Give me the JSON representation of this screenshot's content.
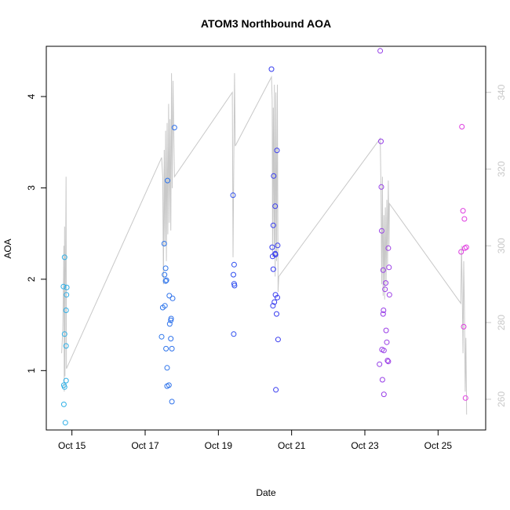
{
  "chart_data": {
    "type": "scatter",
    "title": "ATOM3 Northbound AOA",
    "xlabel": "Date",
    "ylabel": "AOA",
    "x_unit": "days (Oct)",
    "xlim": [
      14.3,
      26.3
    ],
    "ylim": [
      0.35,
      4.55
    ],
    "y2lim": [
      252,
      352
    ],
    "x_ticks": [
      {
        "value": 15,
        "label": "Oct 15"
      },
      {
        "value": 17,
        "label": "Oct 17"
      },
      {
        "value": 19,
        "label": "Oct 19"
      },
      {
        "value": 21,
        "label": "Oct 21"
      },
      {
        "value": 23,
        "label": "Oct 23"
      },
      {
        "value": 25,
        "label": "Oct 25"
      }
    ],
    "y_ticks": [
      1,
      2,
      3,
      4
    ],
    "y2_ticks": [
      260,
      280,
      300,
      320,
      340
    ],
    "grid": false,
    "legend": "none",
    "colors": {
      "line": "#c8c8c8",
      "start": "#2fb2e6",
      "mid": "#2d3bf0",
      "end": "#e23ee0"
    },
    "series": [
      {
        "kind": "points",
        "axis": "left",
        "color_gradient": "cyan-blue-magenta",
        "points": [
          [
            14.77,
            1.92
          ],
          [
            14.8,
            2.24
          ],
          [
            14.8,
            1.4
          ],
          [
            14.78,
            0.84
          ],
          [
            14.8,
            0.82
          ],
          [
            14.78,
            0.63
          ],
          [
            14.82,
            0.43
          ],
          [
            14.86,
            1.91
          ],
          [
            14.85,
            1.83
          ],
          [
            14.84,
            1.66
          ],
          [
            14.84,
            1.27
          ],
          [
            14.84,
            0.89
          ],
          [
            17.45,
            1.37
          ],
          [
            17.48,
            1.69
          ],
          [
            17.52,
            2.39
          ],
          [
            17.53,
            2.05
          ],
          [
            17.54,
            1.71
          ],
          [
            17.56,
            2.12
          ],
          [
            17.56,
            1.98
          ],
          [
            17.57,
            1.24
          ],
          [
            17.58,
            1.99
          ],
          [
            17.6,
            1.03
          ],
          [
            17.6,
            0.83
          ],
          [
            17.61,
            3.08
          ],
          [
            17.65,
            0.84
          ],
          [
            17.66,
            1.82
          ],
          [
            17.67,
            1.51
          ],
          [
            17.7,
            1.55
          ],
          [
            17.71,
            1.57
          ],
          [
            17.7,
            1.35
          ],
          [
            17.73,
            1.24
          ],
          [
            17.73,
            0.66
          ],
          [
            17.75,
            1.79
          ],
          [
            17.8,
            3.66
          ],
          [
            19.4,
            2.92
          ],
          [
            19.41,
            2.05
          ],
          [
            19.43,
            2.16
          ],
          [
            19.43,
            1.95
          ],
          [
            19.44,
            1.93
          ],
          [
            19.42,
            1.4
          ],
          [
            20.45,
            4.3
          ],
          [
            20.47,
            2.35
          ],
          [
            20.48,
            2.25
          ],
          [
            20.49,
            1.71
          ],
          [
            20.5,
            2.59
          ],
          [
            20.51,
            3.13
          ],
          [
            20.5,
            2.11
          ],
          [
            20.53,
            1.75
          ],
          [
            20.55,
            2.8
          ],
          [
            20.55,
            2.28
          ],
          [
            20.56,
            2.27
          ],
          [
            20.56,
            1.83
          ],
          [
            20.57,
            0.79
          ],
          [
            20.59,
            1.62
          ],
          [
            20.6,
            3.41
          ],
          [
            20.61,
            1.8
          ],
          [
            20.62,
            2.37
          ],
          [
            20.63,
            1.34
          ],
          [
            23.4,
            1.07
          ],
          [
            23.42,
            4.5
          ],
          [
            23.44,
            3.51
          ],
          [
            23.45,
            3.01
          ],
          [
            23.46,
            2.53
          ],
          [
            23.47,
            1.23
          ],
          [
            23.48,
            0.9
          ],
          [
            23.5,
            2.1
          ],
          [
            23.5,
            1.62
          ],
          [
            23.51,
            1.66
          ],
          [
            23.52,
            1.22
          ],
          [
            23.52,
            0.74
          ],
          [
            23.55,
            1.89
          ],
          [
            23.57,
            1.96
          ],
          [
            23.58,
            1.44
          ],
          [
            23.6,
            1.31
          ],
          [
            23.62,
            1.11
          ],
          [
            23.64,
            1.1
          ],
          [
            23.64,
            2.34
          ],
          [
            23.66,
            2.13
          ],
          [
            23.67,
            1.83
          ],
          [
            25.65,
            3.67
          ],
          [
            25.63,
            2.3
          ],
          [
            25.68,
            2.75
          ],
          [
            25.7,
            1.48
          ],
          [
            25.72,
            2.66
          ],
          [
            25.73,
            2.34
          ],
          [
            25.75,
            0.7
          ],
          [
            25.77,
            2.35
          ]
        ]
      },
      {
        "kind": "line",
        "axis": "right",
        "name": "",
        "points": [
          [
            14.72,
            272
          ],
          [
            14.75,
            278
          ],
          [
            14.77,
            290
          ],
          [
            14.78,
            300
          ],
          [
            14.79,
            262
          ],
          [
            14.8,
            305
          ],
          [
            14.81,
            266
          ],
          [
            14.82,
            290
          ],
          [
            14.83,
            300
          ],
          [
            14.84,
            318
          ],
          [
            14.85,
            268
          ],
          [
            17.45,
            323
          ],
          [
            17.48,
            318
          ],
          [
            17.5,
            290
          ],
          [
            17.52,
            325
          ],
          [
            17.54,
            300
          ],
          [
            17.56,
            330
          ],
          [
            17.58,
            296
          ],
          [
            17.6,
            332
          ],
          [
            17.62,
            303
          ],
          [
            17.64,
            337
          ],
          [
            17.66,
            306
          ],
          [
            17.68,
            333
          ],
          [
            17.7,
            304
          ],
          [
            17.72,
            345
          ],
          [
            17.74,
            315
          ],
          [
            17.76,
            343
          ],
          [
            17.8,
            318
          ],
          [
            19.38,
            340
          ],
          [
            19.4,
            297
          ],
          [
            19.42,
            320
          ],
          [
            19.44,
            345
          ],
          [
            19.46,
            326
          ],
          [
            20.45,
            344
          ],
          [
            20.47,
            338
          ],
          [
            20.48,
            297
          ],
          [
            20.5,
            336
          ],
          [
            20.52,
            300
          ],
          [
            20.53,
            342
          ],
          [
            20.55,
            292
          ],
          [
            20.57,
            340
          ],
          [
            20.59,
            296
          ],
          [
            20.61,
            342
          ],
          [
            20.63,
            288
          ],
          [
            20.65,
            292
          ],
          [
            23.42,
            328
          ],
          [
            23.44,
            316
          ],
          [
            23.46,
            290
          ],
          [
            23.48,
            318
          ],
          [
            23.5,
            287
          ],
          [
            23.52,
            308
          ],
          [
            23.54,
            286
          ],
          [
            23.56,
            310
          ],
          [
            23.58,
            290
          ],
          [
            23.6,
            312
          ],
          [
            23.62,
            295
          ],
          [
            23.64,
            317
          ],
          [
            23.66,
            300
          ],
          [
            23.67,
            311
          ],
          [
            25.62,
            285
          ],
          [
            25.64,
            300
          ],
          [
            25.66,
            288
          ],
          [
            25.68,
            272
          ],
          [
            25.7,
            296
          ],
          [
            25.72,
            284
          ],
          [
            25.74,
            262
          ],
          [
            25.76,
            276
          ],
          [
            25.78,
            256
          ]
        ]
      }
    ]
  }
}
